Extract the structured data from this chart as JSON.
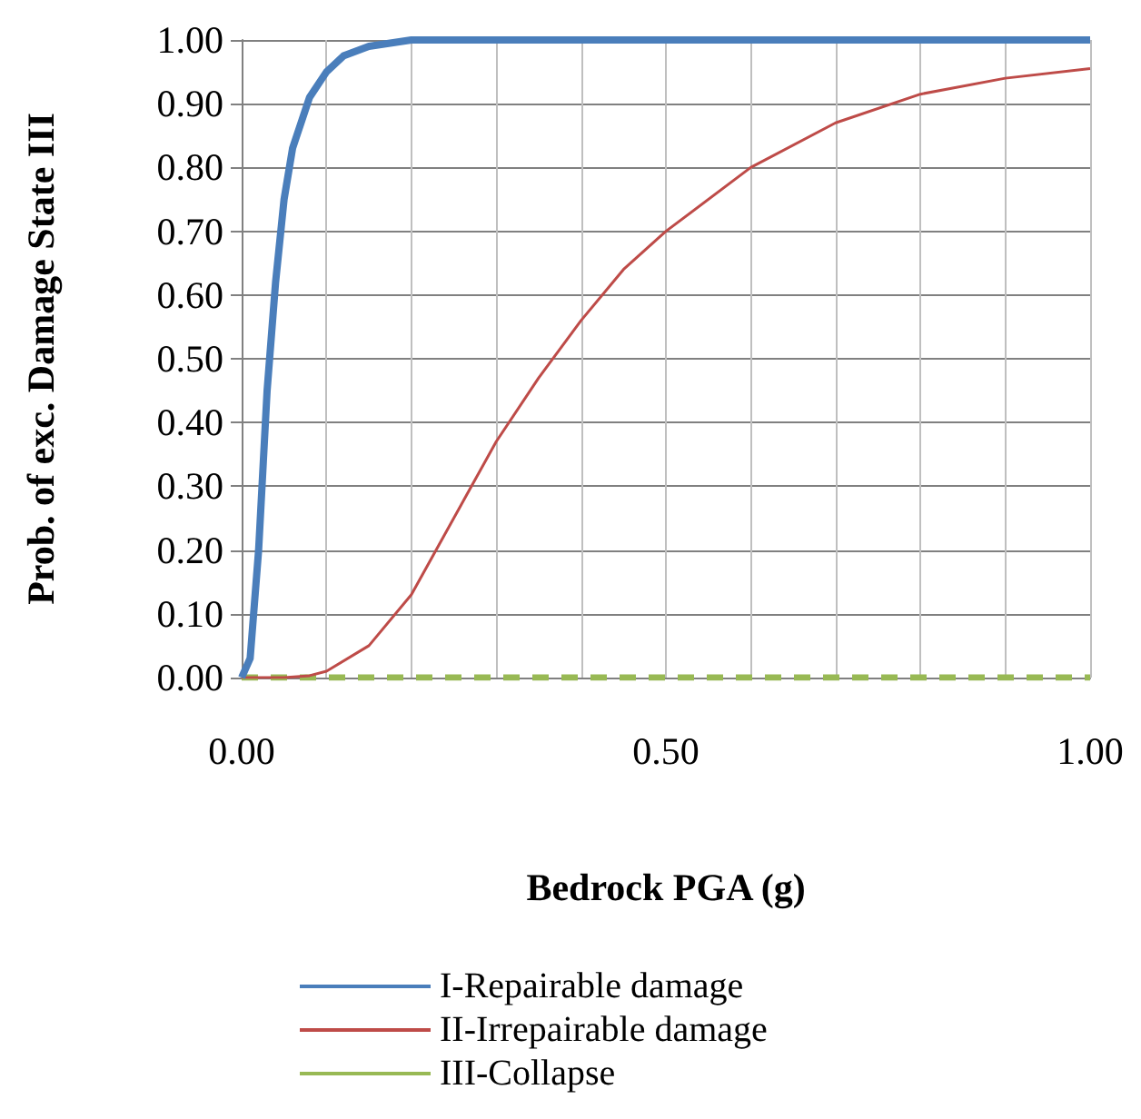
{
  "chart_data": {
    "type": "line",
    "xlabel": "Bedrock PGA (g)",
    "ylabel": "Prob. of exc. Damage State III",
    "xlim": [
      0,
      1
    ],
    "ylim": [
      0,
      1
    ],
    "xticks": [
      {
        "value": 0,
        "label": "0.00"
      },
      {
        "value": 0.1,
        "label": null
      },
      {
        "value": 0.2,
        "label": null
      },
      {
        "value": 0.3,
        "label": null
      },
      {
        "value": 0.4,
        "label": null
      },
      {
        "value": 0.5,
        "label": "0.50"
      },
      {
        "value": 0.6,
        "label": null
      },
      {
        "value": 0.7,
        "label": null
      },
      {
        "value": 0.8,
        "label": null
      },
      {
        "value": 0.9,
        "label": null
      },
      {
        "value": 1,
        "label": "1.00"
      }
    ],
    "yticks": [
      {
        "value": 0,
        "label": "0.00"
      },
      {
        "value": 0.1,
        "label": "0.10"
      },
      {
        "value": 0.2,
        "label": "0.20"
      },
      {
        "value": 0.3,
        "label": "0.30"
      },
      {
        "value": 0.4,
        "label": "0.40"
      },
      {
        "value": 0.5,
        "label": "0.50"
      },
      {
        "value": 0.6,
        "label": "0.60"
      },
      {
        "value": 0.7,
        "label": "0.70"
      },
      {
        "value": 0.8,
        "label": "0.80"
      },
      {
        "value": 0.9,
        "label": "0.90"
      },
      {
        "value": 1,
        "label": "1.00"
      }
    ],
    "grid": true,
    "legend": "bottom",
    "marker": "none",
    "series": [
      {
        "name": "I-Repairable damage",
        "color": "#4a7ebb",
        "line_style": "solid",
        "x": [
          0,
          0.01,
          0.02,
          0.03,
          0.04,
          0.05,
          0.06,
          0.08,
          0.1,
          0.12,
          0.15,
          0.2,
          0.3,
          0.5,
          0.7,
          1
        ],
        "values": [
          0,
          0.03,
          0.2,
          0.45,
          0.62,
          0.75,
          0.83,
          0.91,
          0.95,
          0.975,
          0.99,
          1,
          1,
          1,
          1,
          1
        ]
      },
      {
        "name": "II-Irrepairable damage",
        "color": "#be4b48",
        "line_style": "solid",
        "x": [
          0,
          0.05,
          0.08,
          0.1,
          0.15,
          0.2,
          0.25,
          0.3,
          0.35,
          0.4,
          0.45,
          0.5,
          0.6,
          0.7,
          0.8,
          0.9,
          1
        ],
        "values": [
          0,
          0,
          0.003,
          0.01,
          0.05,
          0.13,
          0.25,
          0.37,
          0.47,
          0.56,
          0.64,
          0.7,
          0.8,
          0.87,
          0.915,
          0.94,
          0.955
        ]
      },
      {
        "name": "III-Collapse",
        "color": "#98b954",
        "line_style": "dashed",
        "x": [
          0,
          0.25,
          0.5,
          0.75,
          1
        ],
        "values": [
          0,
          0,
          0,
          0,
          0
        ]
      }
    ]
  }
}
